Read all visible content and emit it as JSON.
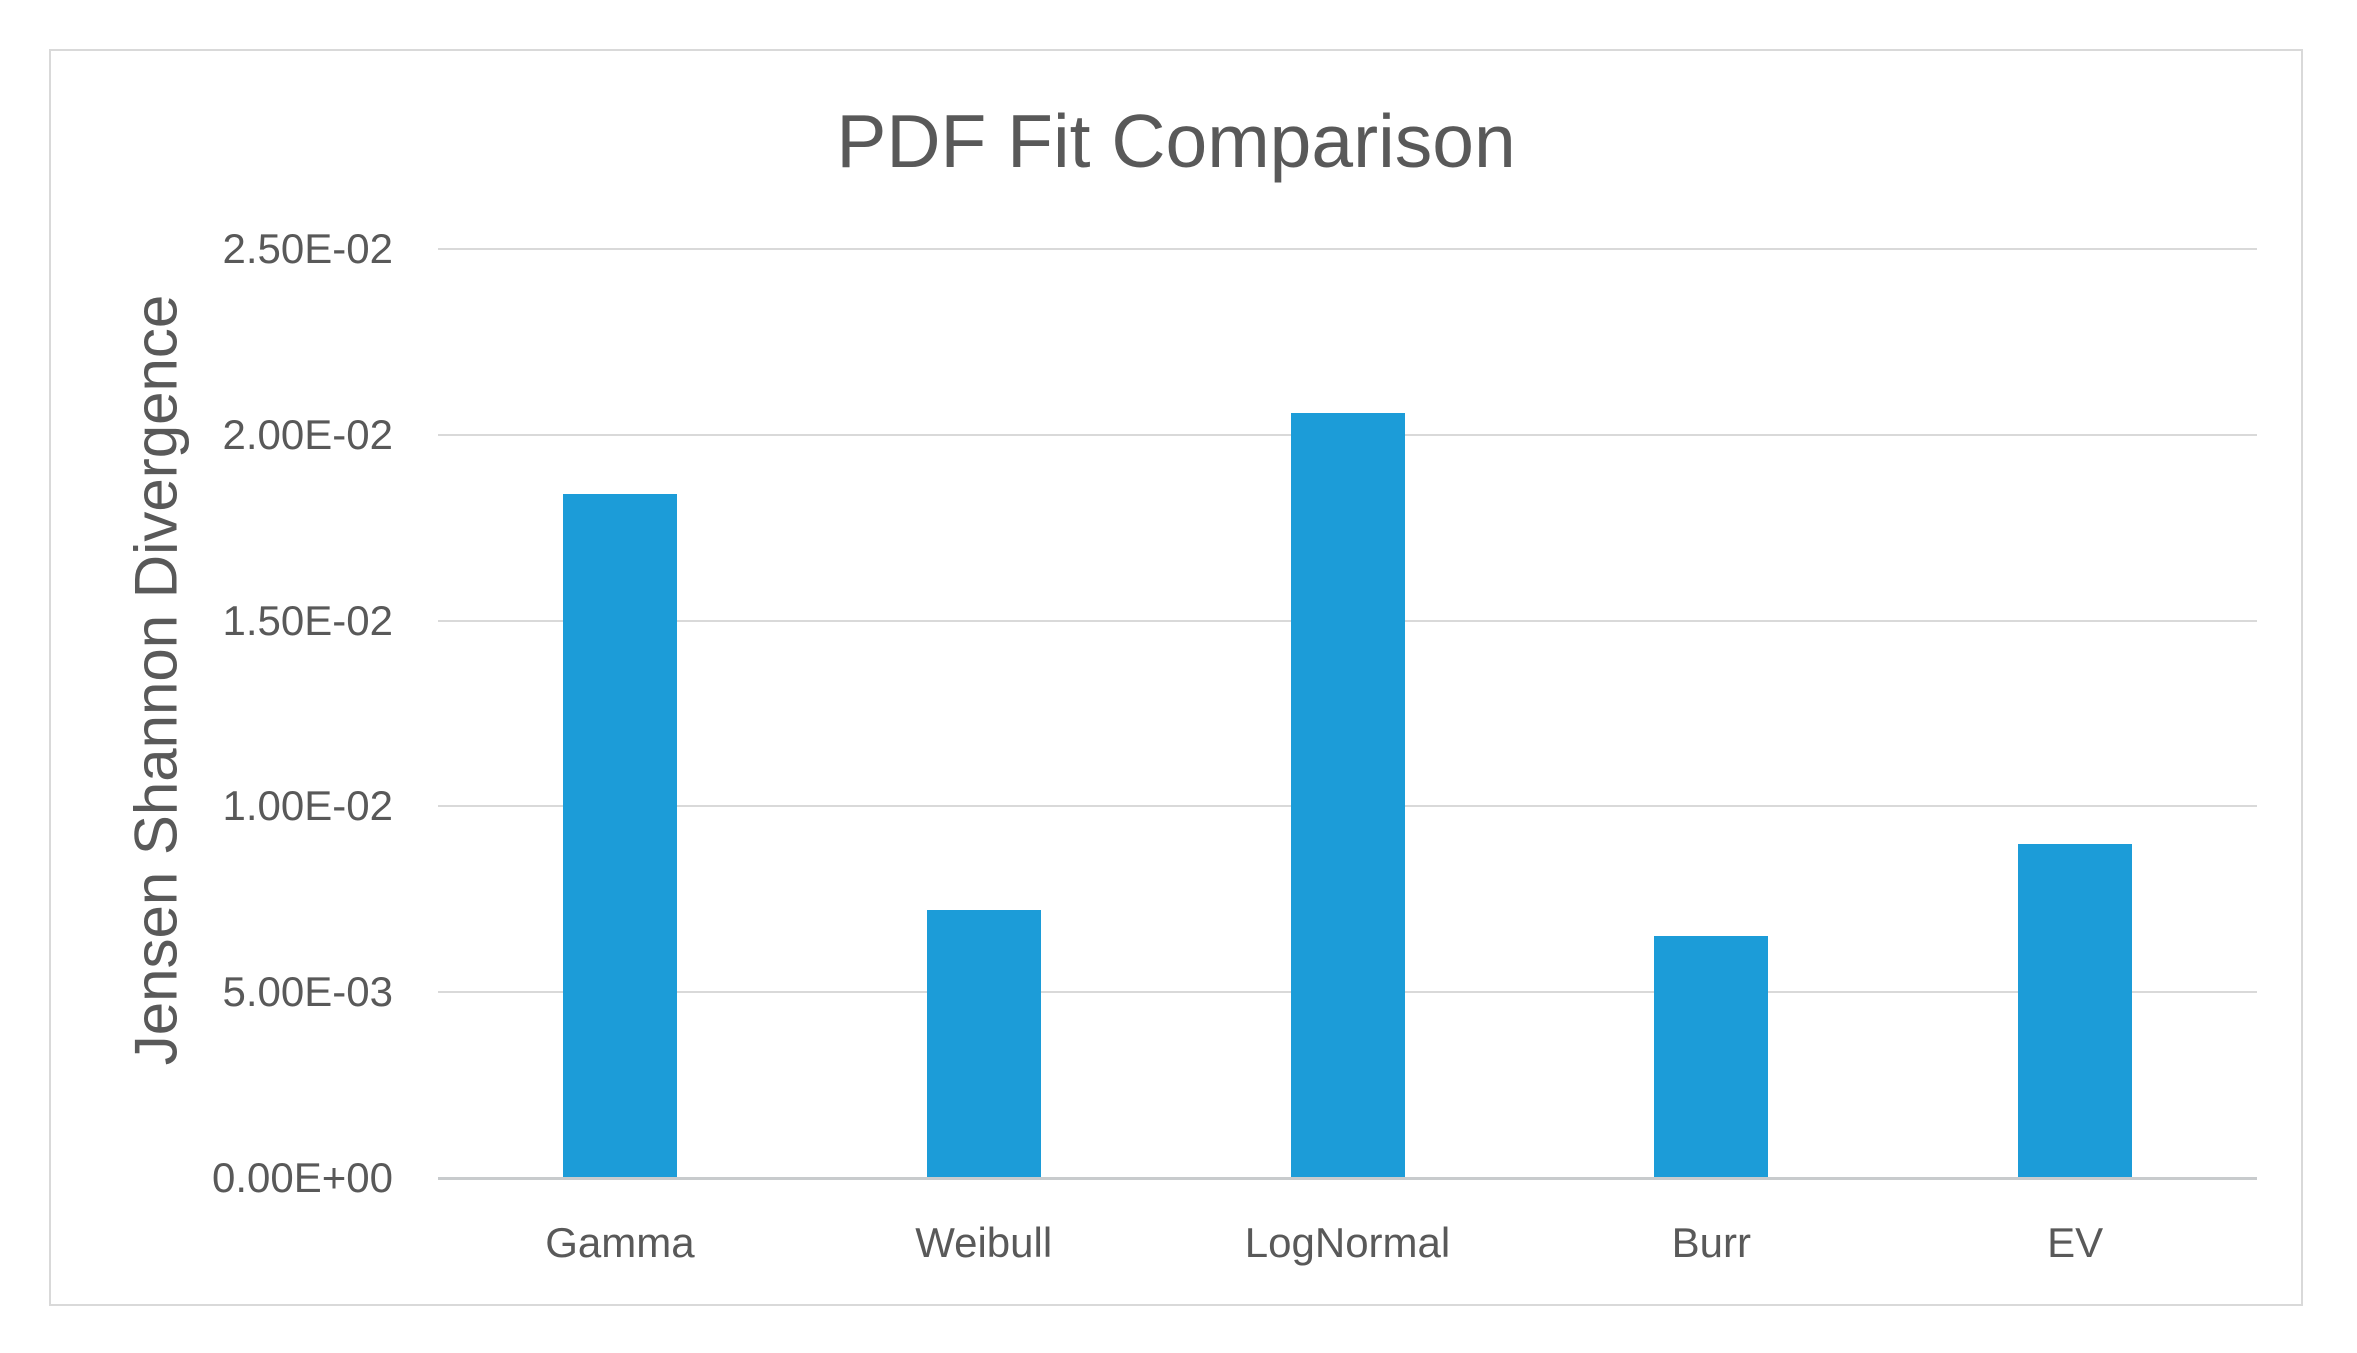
{
  "chart_data": {
    "type": "bar",
    "title": "PDF Fit Comparison",
    "ylabel": "Jensen Shannon Divergence",
    "xlabel": "",
    "categories": [
      "Gamma",
      "Weibull",
      "LogNormal",
      "Burr",
      "EV"
    ],
    "values": [
      0.0184,
      0.0072,
      0.0206,
      0.0065,
      0.009
    ],
    "ylim": [
      0,
      0.025
    ],
    "yticks": [
      0,
      0.005,
      0.01,
      0.015,
      0.02,
      0.025
    ],
    "ytick_labels": [
      "0.00E+00",
      "5.00E-03",
      "1.00E-02",
      "1.50E-02",
      "2.00E-02",
      "2.50E-02"
    ],
    "grid": true,
    "legend": "none",
    "colors": {
      "bar": "#1C9CD8",
      "gridline": "#D9D9D9",
      "axis_line": "#C8CBCD",
      "text": "#595959",
      "frame_border": "#D9D9D9",
      "background": "#FFFFFF"
    }
  }
}
